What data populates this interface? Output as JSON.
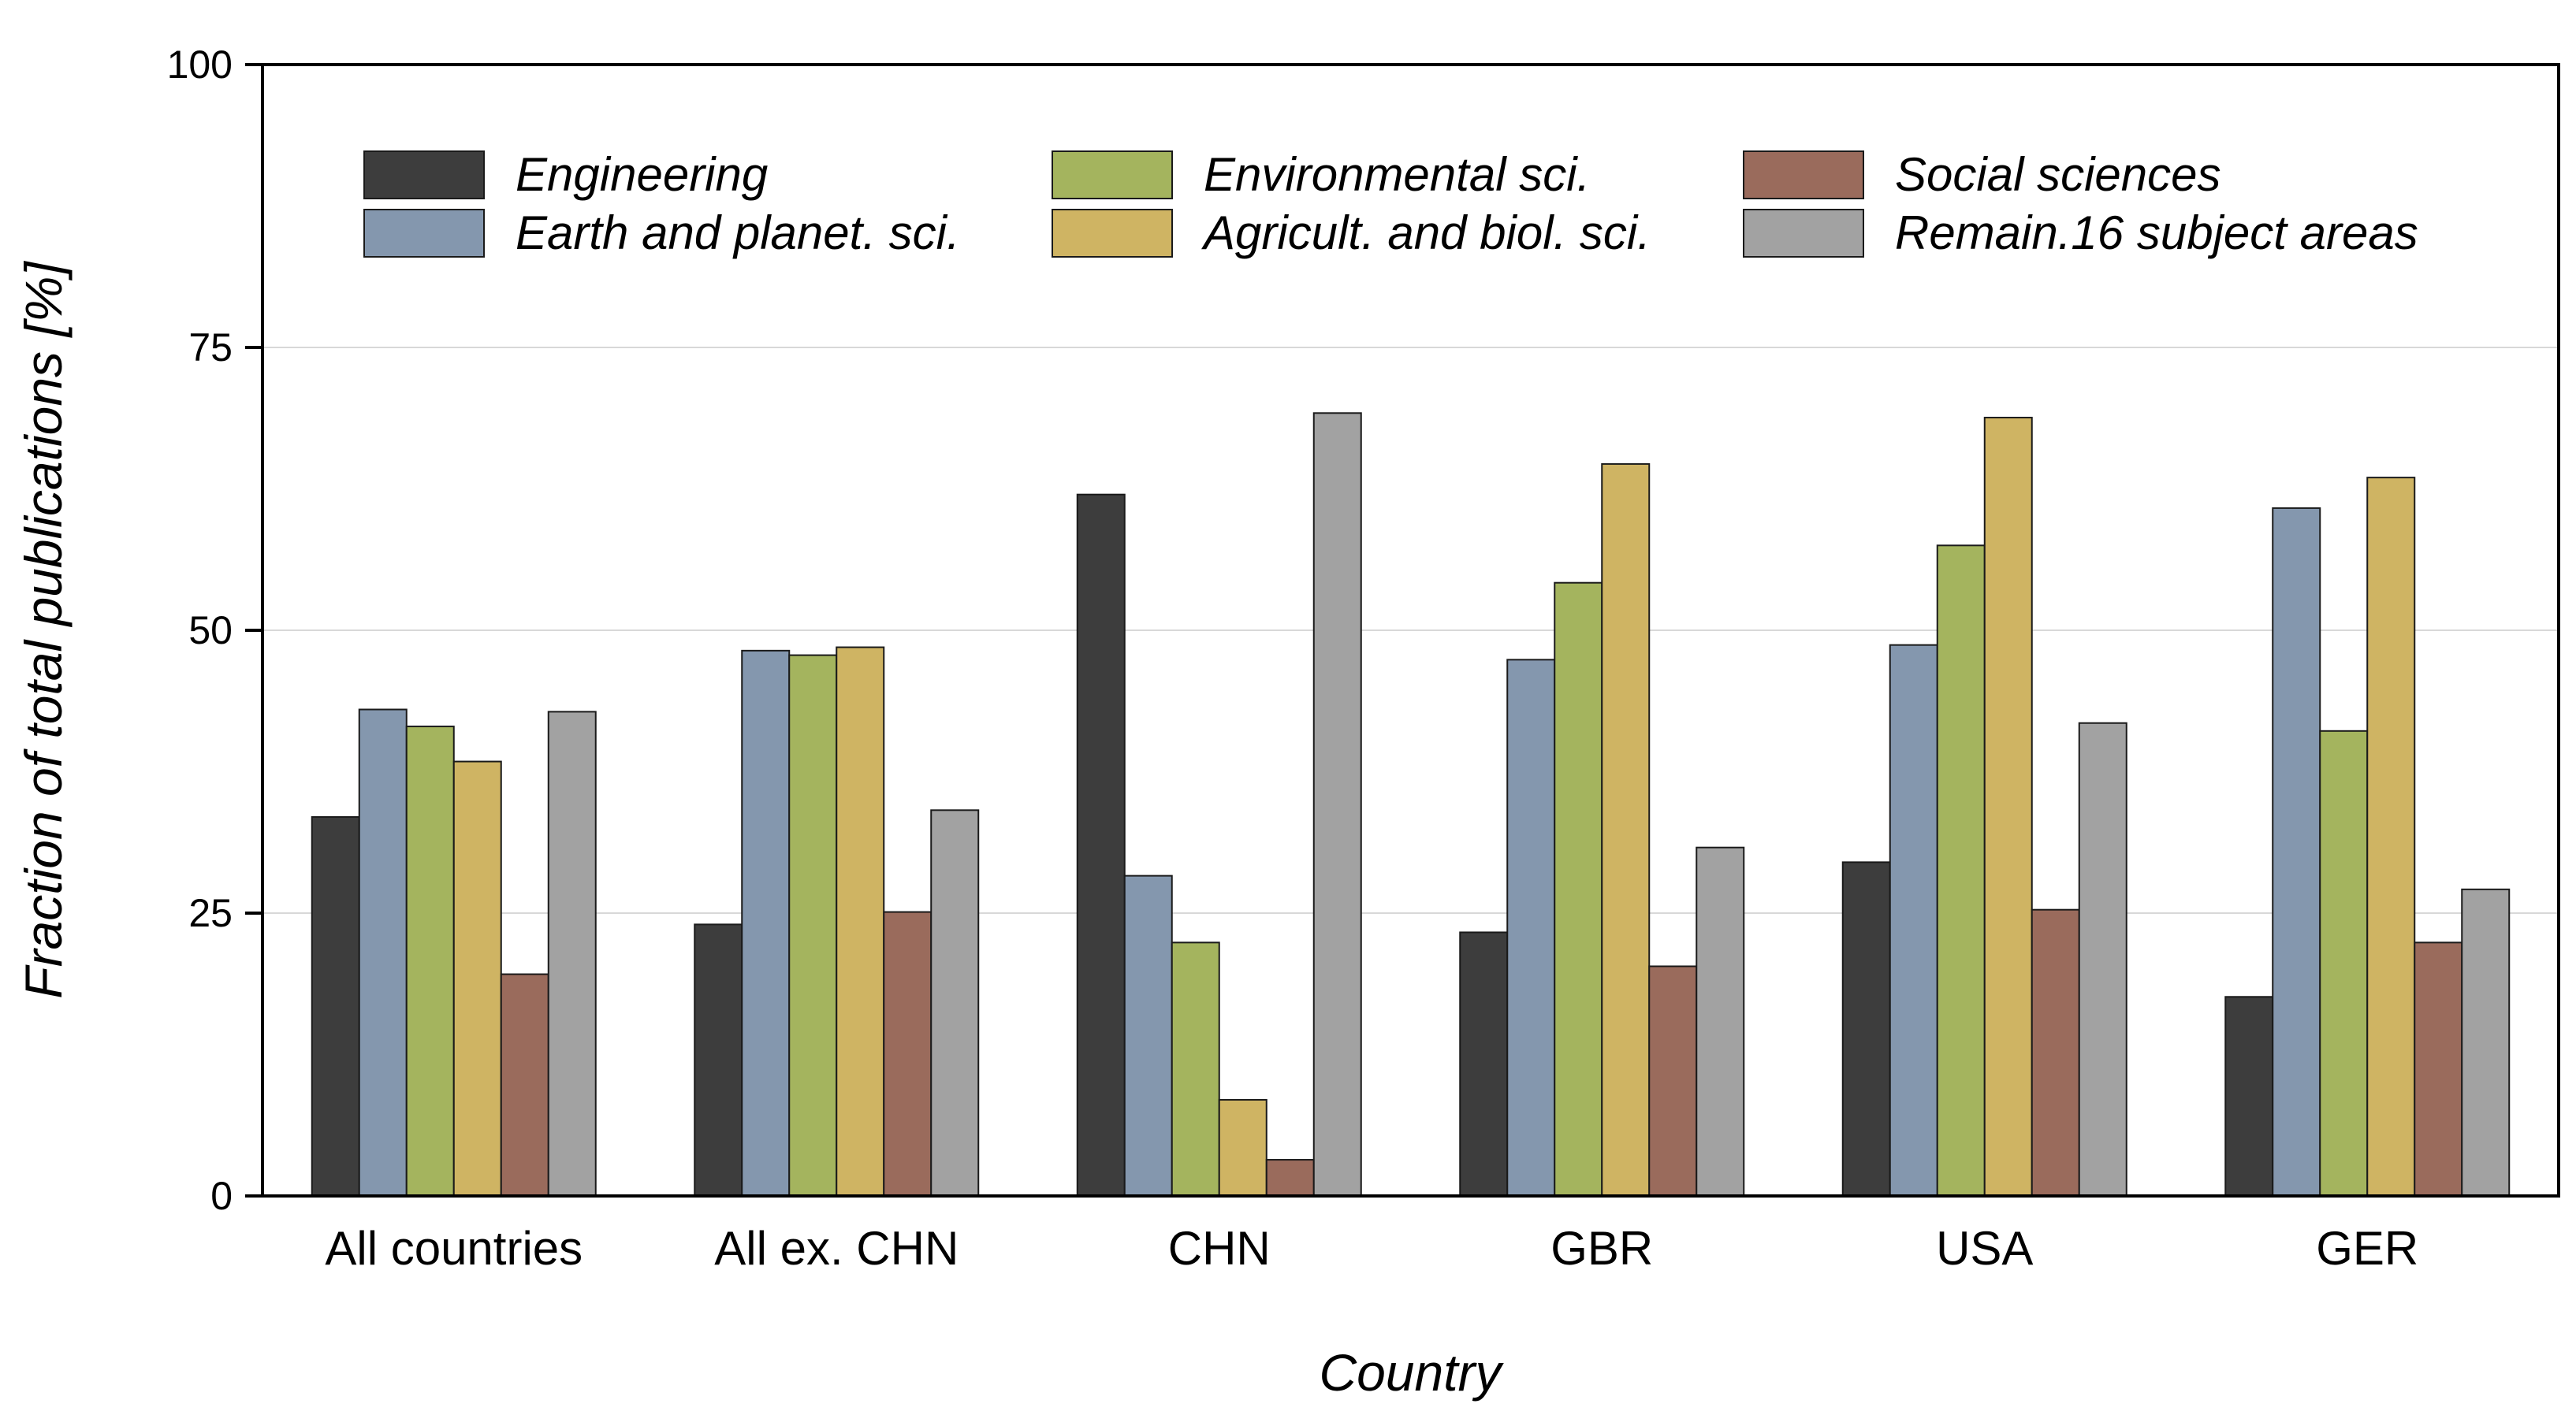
{
  "chart_data": {
    "type": "bar",
    "title": "",
    "xlabel": "Country",
    "ylabel": "Fraction of total publications [%]",
    "ylim": [
      0,
      100
    ],
    "yticks": [
      "0",
      "25",
      "50",
      "75",
      "100"
    ],
    "grid": true,
    "legend_position": "top",
    "categories": [
      "All countries",
      "All ex. CHN",
      "CHN",
      "GBR",
      "USA",
      "GER"
    ],
    "series": [
      {
        "name": "Engineering",
        "color": "#3d3d3d",
        "values": [
          33.5,
          24.0,
          62.0,
          23.3,
          29.5,
          17.6
        ]
      },
      {
        "name": "Earth and planet. sci.",
        "color": "#8497ae",
        "values": [
          43.0,
          48.2,
          28.3,
          47.4,
          48.7,
          60.8
        ]
      },
      {
        "name": "Environmental sci.",
        "color": "#a4b45e",
        "values": [
          41.5,
          47.8,
          22.4,
          54.2,
          57.5,
          41.1
        ]
      },
      {
        "name": "Agricult. and biol. sci.",
        "color": "#cfb463",
        "values": [
          38.4,
          48.5,
          8.5,
          64.7,
          68.8,
          63.5
        ]
      },
      {
        "name": "Social sciences",
        "color": "#9a6b5c",
        "values": [
          19.6,
          25.1,
          3.2,
          20.3,
          25.3,
          22.4
        ]
      },
      {
        "name": "Remain.16 subject areas",
        "color": "#a2a2a2",
        "values": [
          42.8,
          34.1,
          69.2,
          30.8,
          41.8,
          27.1
        ]
      }
    ]
  }
}
